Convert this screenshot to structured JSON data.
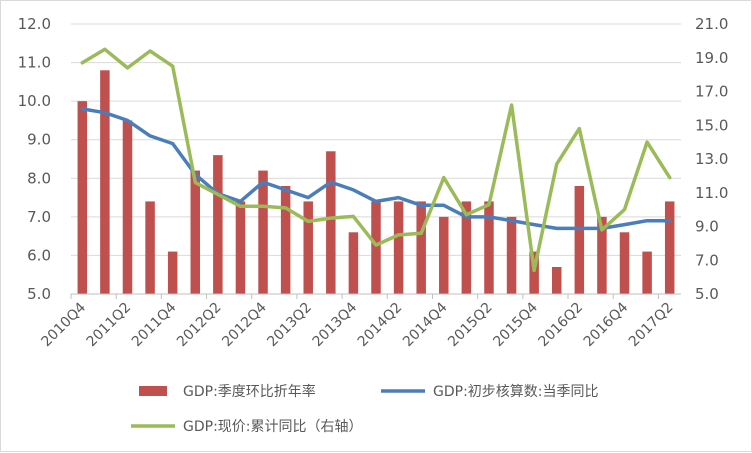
{
  "chart_data": {
    "type": "bar",
    "categories": [
      "2010Q4",
      "2011Q1",
      "2011Q2",
      "2011Q3",
      "2011Q4",
      "2012Q1",
      "2012Q2",
      "2012Q3",
      "2012Q4",
      "2013Q1",
      "2013Q2",
      "2013Q3",
      "2013Q4",
      "2014Q1",
      "2014Q2",
      "2014Q3",
      "2014Q4",
      "2015Q1",
      "2015Q2",
      "2015Q3",
      "2015Q4",
      "2016Q1",
      "2016Q2",
      "2016Q3",
      "2016Q4",
      "2017Q1",
      "2017Q2"
    ],
    "x_tick_labels": [
      "2010Q4",
      "2011Q2",
      "2011Q4",
      "2012Q2",
      "2012Q4",
      "2013Q2",
      "2013Q4",
      "2014Q2",
      "2014Q4",
      "2015Q2",
      "2015Q4",
      "2016Q2",
      "2016Q4",
      "2017Q2"
    ],
    "series": [
      {
        "name": "GDP:季度环比折年率",
        "type": "bar",
        "axis": "left",
        "color": "#c0504d",
        "values": [
          10.0,
          10.8,
          9.5,
          7.4,
          6.1,
          8.2,
          8.6,
          7.4,
          8.2,
          7.8,
          7.4,
          8.7,
          6.6,
          7.4,
          7.4,
          7.4,
          7.0,
          7.4,
          7.4,
          7.0,
          6.1,
          5.7,
          7.8,
          7.0,
          6.6,
          6.1,
          7.4
        ]
      },
      {
        "name": "GDP:初步核算数:当季同比",
        "type": "line",
        "axis": "left",
        "color": "#4a7ebb",
        "values": [
          9.8,
          9.7,
          9.5,
          9.1,
          8.9,
          8.1,
          7.6,
          7.4,
          7.9,
          7.7,
          7.5,
          7.9,
          7.7,
          7.4,
          7.5,
          7.3,
          7.3,
          7.0,
          7.0,
          6.9,
          6.8,
          6.7,
          6.7,
          6.7,
          6.8,
          6.9,
          6.9
        ]
      },
      {
        "name": "GDP:现价:累计同比（右轴）",
        "type": "line",
        "axis": "right",
        "color": "#9bbb59",
        "values": [
          18.7,
          19.5,
          18.4,
          19.4,
          18.5,
          11.6,
          10.9,
          10.2,
          10.2,
          10.1,
          9.3,
          9.5,
          9.6,
          7.9,
          8.5,
          8.6,
          11.9,
          9.7,
          10.3,
          16.2,
          6.4,
          12.7,
          14.8,
          8.8,
          10.0,
          14.0,
          11.9
        ]
      }
    ],
    "y_left": {
      "min": 5.0,
      "max": 12.0,
      "ticks": [
        "5.0",
        "6.0",
        "7.0",
        "8.0",
        "9.0",
        "10.0",
        "11.0",
        "12.0"
      ]
    },
    "y_right": {
      "min": 5.0,
      "max": 21.0,
      "ticks": [
        "5.0",
        "7.0",
        "9.0",
        "11.0",
        "13.0",
        "15.0",
        "17.0",
        "19.0",
        "21.0"
      ]
    },
    "grid": true,
    "legend_position": "bottom"
  }
}
